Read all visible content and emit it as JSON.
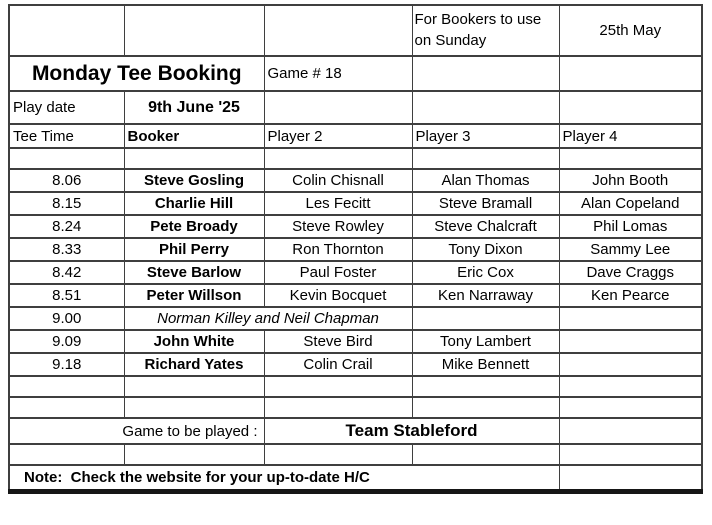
{
  "header": {
    "sunday_note": "For Bookers to use on Sunday",
    "sunday_date": "25th May",
    "title": "Monday Tee Booking",
    "game_number": "Game # 18",
    "play_date_label": "Play date",
    "play_date_value": "9th June '25"
  },
  "table": {
    "columns": [
      "Tee Time",
      "Booker",
      "Player 2",
      "Player 3",
      "Player 4"
    ],
    "rows": [
      {
        "time": "8.06",
        "booker": "Steve Gosling",
        "player2": "Colin Chisnall",
        "player3": "Alan Thomas",
        "player4": "John Booth"
      },
      {
        "time": "8.15",
        "booker": "Charlie Hill",
        "player2": "Les Fecitt",
        "player3": "Steve Bramall",
        "player4": "Alan Copeland"
      },
      {
        "time": "8.24",
        "booker": "Pete Broady",
        "player2": "Steve Rowley",
        "player3": "Steve Chalcraft",
        "player4": "Phil Lomas"
      },
      {
        "time": "8.33",
        "booker": "Phil Perry",
        "player2": "Ron Thornton",
        "player3": "Tony Dixon",
        "player4": "Sammy Lee"
      },
      {
        "time": "8.42",
        "booker": "Steve Barlow",
        "player2": "Paul Foster",
        "player3": "Eric Cox",
        "player4": "Dave Craggs"
      },
      {
        "time": "8.51",
        "booker": "Peter Willson",
        "player2": "Kevin Bocquet",
        "player3": "Ken Narraway",
        "player4": "Ken Pearce"
      },
      {
        "time": "9.00",
        "merged_players": "Norman Killey and Neil Chapman",
        "player3": "",
        "player4": ""
      },
      {
        "time": "9.09",
        "booker": "John White",
        "player2": "Steve Bird",
        "player3": "Tony Lambert",
        "player4": ""
      },
      {
        "time": "9.18",
        "booker": "Richard Yates",
        "player2": "Colin Crail",
        "player3": "Mike Bennett",
        "player4": ""
      }
    ]
  },
  "footer": {
    "game_label": "Game to be played :",
    "game_value": "Team Stableford",
    "note": "Note:  Check the website for your up-to-date H/C"
  },
  "colors": {
    "border": "#3f3f3f",
    "border_heavy": "#161616",
    "text": "#000000",
    "background": "#ffffff"
  }
}
